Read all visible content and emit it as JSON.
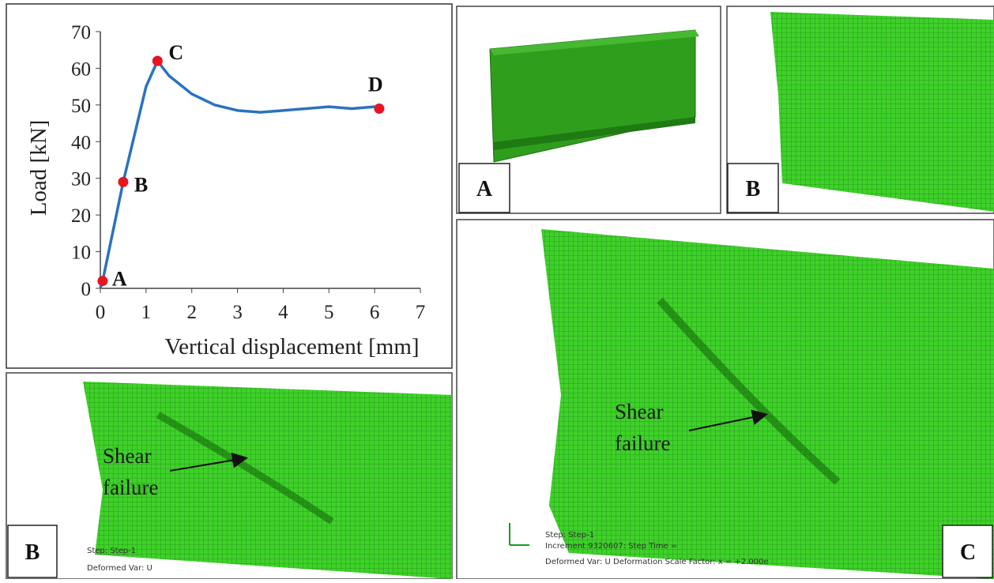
{
  "chart_data": {
    "type": "line",
    "xlabel": "Vertical displacement [mm]",
    "ylabel": "Load [kN]",
    "x": [
      0,
      0.05,
      0.5,
      1,
      1.25,
      1.5,
      2,
      2.5,
      3,
      3.5,
      4,
      4.5,
      5,
      5.5,
      6,
      6.1
    ],
    "series": [
      {
        "color": "#2a72c0",
        "values": [
          0,
          2,
          29,
          55,
          62,
          58,
          53,
          50,
          48.5,
          48,
          48.5,
          49,
          49.5,
          49,
          49.5,
          49
        ]
      }
    ],
    "annotations": [
      {
        "text": "A",
        "x": 0.05,
        "y": 2
      },
      {
        "text": "B",
        "x": 0.5,
        "y": 29
      },
      {
        "text": "C",
        "x": 1.25,
        "y": 62
      },
      {
        "text": "D",
        "x": 6.1,
        "y": 49
      }
    ],
    "marker_color": "#e8141e",
    "xlim": [
      0,
      7
    ],
    "xticks": [
      0,
      1,
      2,
      3,
      4,
      5,
      6,
      7
    ],
    "ylim": [
      0,
      70
    ],
    "yticks": [
      0,
      10,
      20,
      30,
      40,
      50,
      60,
      70
    ]
  },
  "panels": [
    {
      "label": "A"
    },
    {
      "label": "B"
    },
    {
      "label": "B",
      "annotation": [
        "Shear",
        "failure"
      ],
      "caption": [
        "Step: Step-1",
        "Deformed Var: U"
      ]
    },
    {
      "label": "C",
      "annotation": [
        "Shear",
        "failure"
      ],
      "caption": [
        "Step: Step-1",
        "Increment    9320607: Step Time =",
        "Deformed Var: U   Deformation Scale Factor: x = +2.000e"
      ]
    }
  ]
}
